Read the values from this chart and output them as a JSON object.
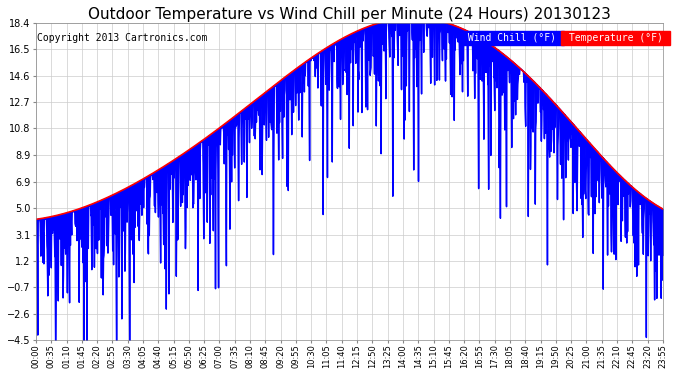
{
  "title": "Outdoor Temperature vs Wind Chill per Minute (24 Hours) 20130123",
  "copyright": "Copyright 2013 Cartronics.com",
  "ylim": [
    -4.5,
    18.4
  ],
  "yticks": [
    18.4,
    16.5,
    14.6,
    12.7,
    10.8,
    8.9,
    6.9,
    5.0,
    3.1,
    1.2,
    -0.7,
    -2.6,
    -4.5
  ],
  "temp_color": "#ff0000",
  "wind_color": "#0000ff",
  "bg_color": "#ffffff",
  "grid_color": "#cccccc",
  "legend_wind_bg": "#0000ff",
  "legend_temp_bg": "#ff0000",
  "title_fontsize": 11,
  "copyright_fontsize": 7,
  "xtick_labels": [
    "00:00",
    "00:35",
    "01:10",
    "01:45",
    "02:20",
    "02:55",
    "03:30",
    "04:05",
    "04:40",
    "05:15",
    "05:50",
    "06:25",
    "07:00",
    "07:35",
    "08:10",
    "08:45",
    "09:20",
    "09:55",
    "10:30",
    "11:05",
    "11:40",
    "12:15",
    "12:50",
    "13:25",
    "14:00",
    "14:35",
    "15:10",
    "15:45",
    "16:20",
    "16:55",
    "17:30",
    "18:05",
    "18:40",
    "19:15",
    "19:50",
    "20:25",
    "21:00",
    "21:35",
    "22:10",
    "22:45",
    "23:20",
    "23:55"
  ]
}
